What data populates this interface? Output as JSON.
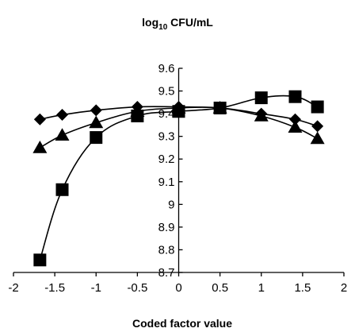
{
  "chart_data": {
    "type": "line",
    "title_main": "log",
    "title_sub": "10",
    "title_rest": " CFU/mL",
    "xlabel": "Coded factor value",
    "ylabel": "",
    "xlim": [
      -2,
      2
    ],
    "ylim": [
      8.7,
      9.6
    ],
    "x_ticks": [
      -2,
      -1.5,
      -1,
      -0.5,
      0,
      0.5,
      1,
      1.5,
      2
    ],
    "x_tick_labels": [
      "-2",
      "-1.5",
      "-1",
      "-0.5",
      "0",
      "0.5",
      "1",
      "1.5",
      "2"
    ],
    "y_ticks": [
      8.7,
      8.8,
      8.9,
      9.0,
      9.1,
      9.2,
      9.3,
      9.4,
      9.5,
      9.6
    ],
    "y_tick_labels": [
      "8.7",
      "8.8",
      "8.9",
      "9",
      "9.1",
      "9.2",
      "9.3",
      "9.4",
      "9.5",
      "9.6"
    ],
    "grid": false,
    "legend": "none",
    "series": [
      {
        "marker": "diamond",
        "x": [
          -1.68,
          -1.41,
          -1,
          -0.5,
          0,
          0.5,
          1,
          1.41,
          1.68
        ],
        "y": [
          9.375,
          9.395,
          9.415,
          9.43,
          9.43,
          9.425,
          9.4,
          9.375,
          9.345
        ]
      },
      {
        "marker": "triangle",
        "x": [
          -1.68,
          -1.41,
          -1,
          -0.5,
          0,
          0.5,
          1,
          1.41,
          1.68
        ],
        "y": [
          9.25,
          9.305,
          9.36,
          9.41,
          9.425,
          9.425,
          9.39,
          9.34,
          9.29
        ]
      },
      {
        "marker": "square",
        "x": [
          -1.68,
          -1.41,
          -1,
          -0.5,
          0,
          0.5,
          1,
          1.41,
          1.68
        ],
        "y": [
          8.755,
          9.065,
          9.295,
          9.39,
          9.41,
          9.425,
          9.47,
          9.475,
          9.43
        ]
      }
    ]
  }
}
